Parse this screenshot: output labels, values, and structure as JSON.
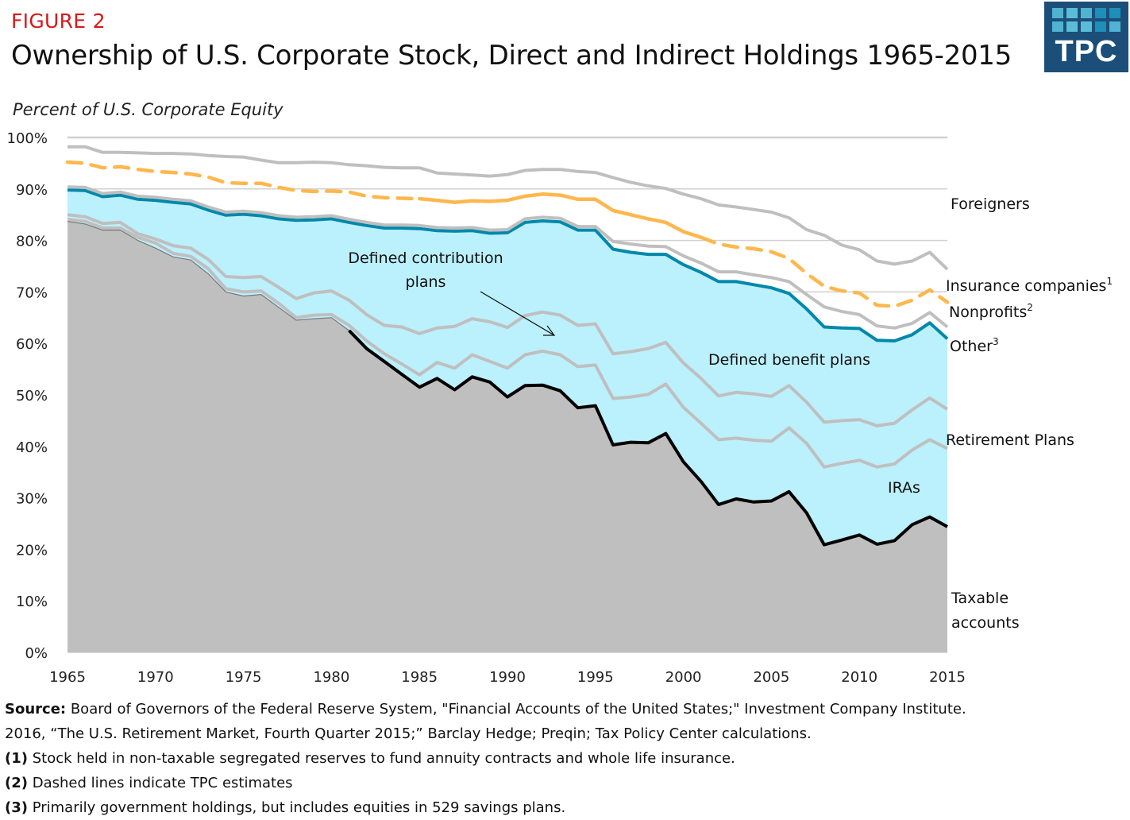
{
  "header": {
    "figure_label": "FIGURE 2",
    "title": "Ownership of U.S. Corporate Stock, Direct and Indirect Holdings 1965-2015",
    "logo_text": "TPC"
  },
  "colors": {
    "taxable_fill": "#bfbfbf",
    "retirement_fill": "#bbf0fd",
    "gray_line": "#bfbfbf",
    "black_line": "#000000",
    "teal_line": "#0088aa",
    "orange_dashed": "#ffb74d",
    "grid": "#d0d0d0",
    "figure_label": "#d7191c",
    "logo_bg": "#1b4f7a"
  },
  "chart_data": {
    "type": "area",
    "title": "Ownership of U.S. Corporate Stock, Direct and Indirect Holdings 1965-2015",
    "ylabel": "Percent of U.S. Corporate Equity",
    "xlabel": "",
    "xlim": [
      1965,
      2015
    ],
    "ylim": [
      0,
      100
    ],
    "grid": true,
    "x_ticks": [
      "1965",
      "1970",
      "1975",
      "1980",
      "1985",
      "1990",
      "1995",
      "2000",
      "2005",
      "2010",
      "2015"
    ],
    "y_ticks": [
      "0%",
      "10%",
      "20%",
      "30%",
      "40%",
      "50%",
      "60%",
      "70%",
      "80%",
      "90%",
      "100%"
    ],
    "x": [
      1965,
      1966,
      1967,
      1968,
      1969,
      1970,
      1971,
      1972,
      1973,
      1974,
      1975,
      1976,
      1977,
      1978,
      1979,
      1980,
      1981,
      1982,
      1983,
      1984,
      1985,
      1986,
      1987,
      1988,
      1989,
      1990,
      1991,
      1992,
      1993,
      1994,
      1995,
      1996,
      1997,
      1998,
      1999,
      2000,
      2001,
      2002,
      2003,
      2004,
      2005,
      2006,
      2007,
      2008,
      2009,
      2010,
      2011,
      2012,
      2013,
      2014,
      2015
    ],
    "note": "Values are cumulative boundary lines (percent of U.S. corporate equity), read from the figure.",
    "boundaries": [
      {
        "name": "Taxable accounts (top)",
        "style": "black",
        "values": [
          83.7,
          83.2,
          82,
          82,
          80,
          78.5,
          76.8,
          76.2,
          73.5,
          70,
          69.2,
          69.5,
          67,
          64.5,
          64.8,
          65,
          62.5,
          59,
          56.5,
          54,
          51.5,
          53.2,
          51,
          53.5,
          52.5,
          49.6,
          51.8,
          51.9,
          50.8,
          47.5,
          47.9,
          40.3,
          40.8,
          40.7,
          42.5,
          37,
          33.2,
          28.7,
          29.8,
          29.2,
          29.4,
          31.2,
          27.1,
          20.9,
          21.8,
          22.8,
          21,
          21.7,
          24.8,
          26.3,
          24.4
        ]
      },
      {
        "name": "IRAs (top)",
        "style": "gray",
        "values": [
          84.1,
          83.7,
          82.4,
          82.4,
          80.6,
          79.5,
          77.5,
          76.9,
          74.5,
          70.6,
          70,
          70.2,
          67.8,
          65,
          65.5,
          65.6,
          63.5,
          60.5,
          58,
          56,
          53.9,
          56.3,
          55.2,
          57.8,
          56.5,
          55.2,
          57.8,
          58.5,
          57.8,
          55.5,
          55.8,
          49.3,
          49.6,
          50.1,
          52.1,
          47.6,
          44.5,
          41.3,
          41.6,
          41.2,
          41,
          43.6,
          40.6,
          36,
          36.7,
          37.3,
          36,
          36.6,
          39.3,
          41.3,
          39.6
        ]
      },
      {
        "name": "Retirement Plans (top)",
        "style": "gray",
        "values": [
          85,
          84.6,
          83.3,
          83.5,
          81.3,
          80.3,
          79,
          78.5,
          76.3,
          73,
          72.8,
          73,
          70.9,
          68.7,
          69.8,
          70.2,
          68.4,
          65.6,
          63.5,
          63.2,
          61.9,
          63,
          63.3,
          64.8,
          64.2,
          63.1,
          65.4,
          66.1,
          65.5,
          63.5,
          63.8,
          58,
          58.4,
          59,
          60.2,
          56.2,
          53.2,
          49.8,
          50.5,
          50.2,
          49.7,
          51.8,
          48.6,
          44.7,
          45,
          45.2,
          44,
          44.5,
          47.1,
          49.4,
          47.2
        ]
      },
      {
        "name": "Other (top)",
        "style": "teal",
        "values": [
          89.8,
          89.7,
          88.5,
          88.8,
          88,
          87.8,
          87.4,
          87.1,
          85.9,
          84.9,
          85.1,
          84.8,
          84.2,
          83.9,
          84,
          84.2,
          83.5,
          82.9,
          82.4,
          82.4,
          82.3,
          81.9,
          81.8,
          81.9,
          81.4,
          81.5,
          83.5,
          83.8,
          83.6,
          82,
          82,
          78.3,
          77.7,
          77.3,
          77.3,
          75.3,
          73.8,
          72,
          72,
          71.4,
          70.8,
          69.7,
          66.7,
          63.2,
          63,
          62.9,
          60.6,
          60.5,
          61.7,
          64,
          60.9
        ]
      },
      {
        "name": "Nonprofits (top)",
        "style": "gray",
        "values": [
          90.4,
          90.3,
          89.1,
          89.4,
          88.6,
          88.4,
          88,
          87.7,
          86.5,
          85.5,
          85.7,
          85.4,
          84.8,
          84.5,
          84.6,
          84.8,
          84.1,
          83.5,
          83,
          83,
          82.9,
          82.5,
          82.4,
          82.5,
          82,
          82.1,
          84.2,
          84.5,
          84.3,
          82.7,
          82.7,
          79.8,
          79.3,
          78.9,
          78.8,
          77,
          75.6,
          73.9,
          73.9,
          73.3,
          72.8,
          72,
          69.5,
          67.1,
          66.2,
          65.6,
          63.4,
          63,
          63.9,
          66,
          63.2
        ]
      },
      {
        "name": "Insurance companies (top)",
        "style": "orange-dashed-estimate-then-solid",
        "values": [
          95.2,
          95,
          94.1,
          94.3,
          93.8,
          93.4,
          93.2,
          92.9,
          92.3,
          91.2,
          91.1,
          91.1,
          90.3,
          89.7,
          89.5,
          89.6,
          89.4,
          88.6,
          88.3,
          88.2,
          88.1,
          87.8,
          87.4,
          87.7,
          87.6,
          87.8,
          88.6,
          89,
          88.8,
          88,
          88,
          85.8,
          85,
          84.2,
          83.5,
          81.7,
          80.6,
          79.3,
          78.7,
          78.4,
          77.8,
          76.5,
          73.6,
          71.1,
          70.2,
          69.8,
          67.4,
          67.2,
          68.4,
          70.4,
          68
        ]
      },
      {
        "name": "Foreigners (top)",
        "style": "gray",
        "values": [
          98.2,
          98.2,
          97.1,
          97.1,
          97,
          96.9,
          96.9,
          96.8,
          96.5,
          96.3,
          96.2,
          95.6,
          95.1,
          95.1,
          95.2,
          95.1,
          94.7,
          94.5,
          94.2,
          94.1,
          94.1,
          93.1,
          92.9,
          92.7,
          92.5,
          92.8,
          93.6,
          93.8,
          93.8,
          93.4,
          93.2,
          92.2,
          91.3,
          90.6,
          90.1,
          89,
          88.1,
          86.9,
          86.5,
          86,
          85.5,
          84.4,
          82.1,
          81,
          79.1,
          78.2,
          76,
          75.4,
          76,
          77.7,
          74.4
        ]
      }
    ],
    "dashed_note": "Insurance companies line is dashed (TPC estimates) for 1965-1985 and 2001-2015, solid 1985-2001.",
    "series_labels": [
      "Foreigners",
      "Insurance companies",
      "Nonprofits",
      "Other",
      "Defined benefit plans",
      "Defined contribution plans",
      "Retirement Plans",
      "IRAs",
      "Taxable accounts"
    ],
    "annotations": [
      {
        "text": "Defined contribution plans",
        "arrow": true
      },
      {
        "text": "Defined benefit plans"
      }
    ],
    "legend": "inline-right"
  },
  "labels": {
    "ylabel": "Percent of U.S. Corporate Equity",
    "foreigners": "Foreigners",
    "insurance": "Insurance companies",
    "insurance_sup": "1",
    "nonprofits": "Nonprofits",
    "nonprofits_sup": "2",
    "other": "Other",
    "other_sup": "3",
    "retirement_plans": "Retirement Plans",
    "iras": "IRAs",
    "taxable_1": "Taxable",
    "taxable_2": "accounts",
    "dc_1": "Defined contribution",
    "dc_2": "plans",
    "db": "Defined benefit plans"
  },
  "footer": {
    "source_label": "Source:",
    "source_line1": " Board of Governors of the Federal Reserve System, \"Financial Accounts of the United States;\" Investment Company Institute.",
    "source_line2": "2016, “The U.S. Retirement Market, Fourth Quarter 2015;” Barclay Hedge; Preqin; Tax Policy Center calculations.",
    "note1_label": "(1)",
    "note1": " Stock held in non-taxable segregated reserves to fund annuity contracts and whole life insurance.",
    "note2_label": "(2)",
    "note2": " Dashed lines indicate TPC estimates",
    "note3_label": "(3)",
    "note3": " Primarily government holdings, but includes equities in 529 savings plans."
  }
}
